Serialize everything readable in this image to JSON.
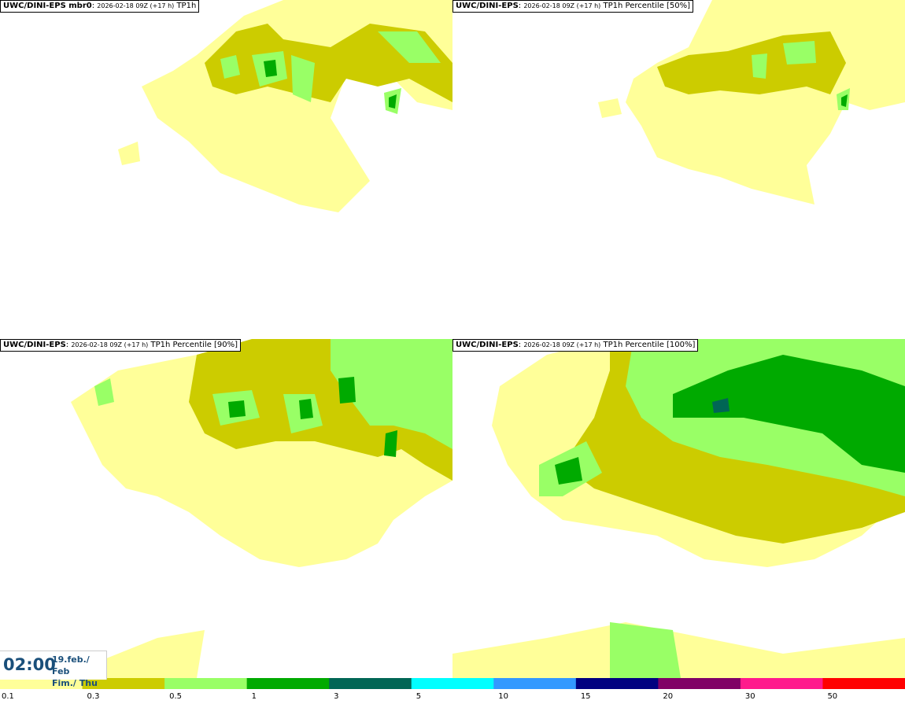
{
  "panels": [
    {
      "model": "UWC/DINI-EPS mbr0",
      "run": "2026-02-18 09Z (+17 h)",
      "field": "TP1h"
    },
    {
      "model": "UWC/DINI-EPS",
      "run": "2026-02-18 09Z (+17 h)",
      "field": "TP1h Percentile [50%]"
    },
    {
      "model": "UWC/DINI-EPS",
      "run": "2026-02-18 09Z (+17 h)",
      "field": "TP1h Percentile [90%]"
    },
    {
      "model": "UWC/DINI-EPS",
      "run": "2026-02-18 09Z (+17 h)",
      "field": "TP1h Percentile [100%]"
    }
  ],
  "valid_time": {
    "time": "02:00",
    "date_line1": "19.feb./ Feb",
    "date_line2": "Fim./ Thu"
  },
  "legend": {
    "labels": [
      "0.1",
      "0.3",
      "0.5",
      "1",
      "3",
      "5",
      "10",
      "15",
      "20",
      "30",
      "50"
    ],
    "colors": [
      "#ffff99",
      "#cccc00",
      "#99ff66",
      "#00aa00",
      "#006655",
      "#00ffff",
      "#3399ff",
      "#000080",
      "#800066",
      "#ff1a8c",
      "#ff0000"
    ]
  }
}
